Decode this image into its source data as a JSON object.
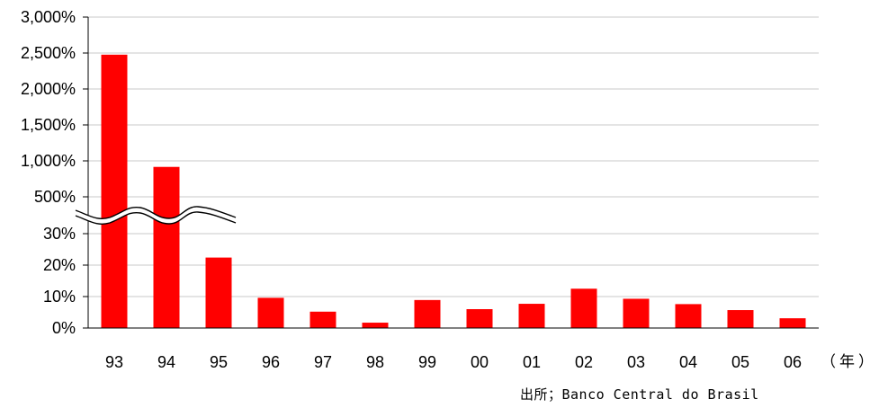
{
  "chart_data": {
    "type": "bar",
    "title": "",
    "xlabel": "（年）",
    "ylabel": "",
    "categories": [
      "93",
      "94",
      "95",
      "96",
      "97",
      "98",
      "99",
      "00",
      "01",
      "02",
      "03",
      "04",
      "05",
      "06"
    ],
    "values": [
      2477,
      916,
      22.4,
      9.6,
      5.2,
      1.7,
      8.9,
      6.0,
      7.7,
      12.5,
      9.3,
      7.6,
      5.7,
      3.1
    ],
    "axis_break": {
      "below_max": 30,
      "above_min": 500
    },
    "y_ticks_lower": [
      "0%",
      "10%",
      "20%",
      "30%"
    ],
    "y_ticks_upper": [
      "500%",
      "1,000%",
      "1,500%",
      "2,000%",
      "2,500%",
      "3,000%"
    ],
    "y_lower_values": [
      0,
      10,
      20,
      30
    ],
    "y_upper_values": [
      500,
      1000,
      1500,
      2000,
      2500,
      3000
    ],
    "grid": true,
    "bar_color": "#ff0000",
    "source": "出所；Banco Central do Brasil"
  }
}
